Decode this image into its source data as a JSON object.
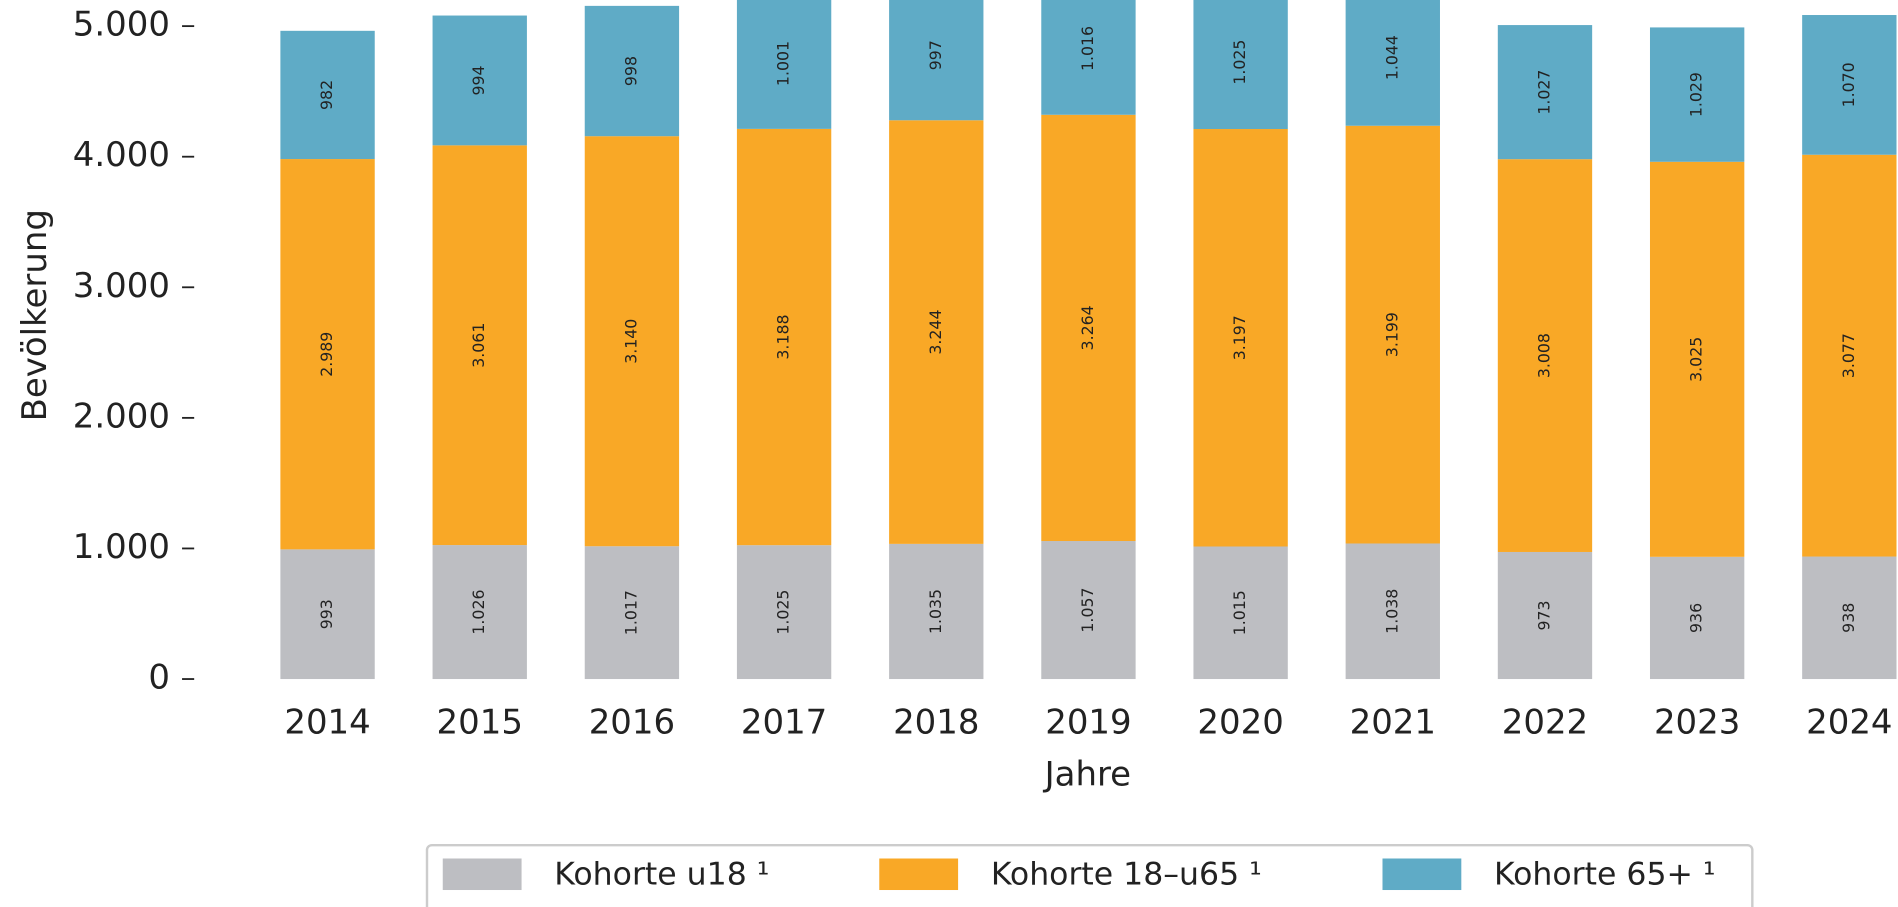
{
  "chart_data": {
    "type": "stacked_bar",
    "xlabel": "Jahre",
    "ylabel": "Bevölkerung",
    "categories": [
      "2014",
      "2015",
      "2016",
      "2017",
      "2018",
      "2019",
      "2020",
      "2021",
      "2022",
      "2023",
      "2024"
    ],
    "series": [
      {
        "name": "Kohorte u18 ¹",
        "color": "#bdbec2",
        "values": [
          993,
          1026,
          1017,
          1025,
          1035,
          1057,
          1015,
          1038,
          973,
          936,
          938
        ],
        "value_labels": [
          "993",
          "1.026",
          "1.017",
          "1.025",
          "1.035",
          "1.057",
          "1.015",
          "1.038",
          "973",
          "936",
          "938"
        ]
      },
      {
        "name": "Kohorte 18–u65 ¹",
        "color": "#f9a826",
        "values": [
          2989,
          3061,
          3140,
          3188,
          3244,
          3264,
          3197,
          3199,
          3008,
          3025,
          3077
        ],
        "value_labels": [
          "2.989",
          "3.061",
          "3.140",
          "3.188",
          "3.244",
          "3.264",
          "3.197",
          "3.199",
          "3.008",
          "3.025",
          "3.077"
        ]
      },
      {
        "name": "Kohorte 65+ ¹",
        "color": "#5fabc6",
        "values": [
          982,
          994,
          998,
          1001,
          997,
          1016,
          1025,
          1044,
          1027,
          1029,
          1070
        ],
        "value_labels": [
          "982",
          "994",
          "998",
          "1.001",
          "997",
          "1.016",
          "1.025",
          "1.044",
          "1.027",
          "1.029",
          "1.070"
        ]
      }
    ],
    "ylim": [
      0,
      5200
    ],
    "yticks": [
      0,
      {
        "value": 1000,
        "label": "1.000"
      },
      {
        "value": 2000,
        "label": "2.000"
      },
      {
        "value": 3000,
        "label": "3.000"
      },
      {
        "value": 4000,
        "label": "4.000"
      },
      {
        "value": 5000,
        "label": "5.000"
      }
    ],
    "legend": "bottom"
  }
}
